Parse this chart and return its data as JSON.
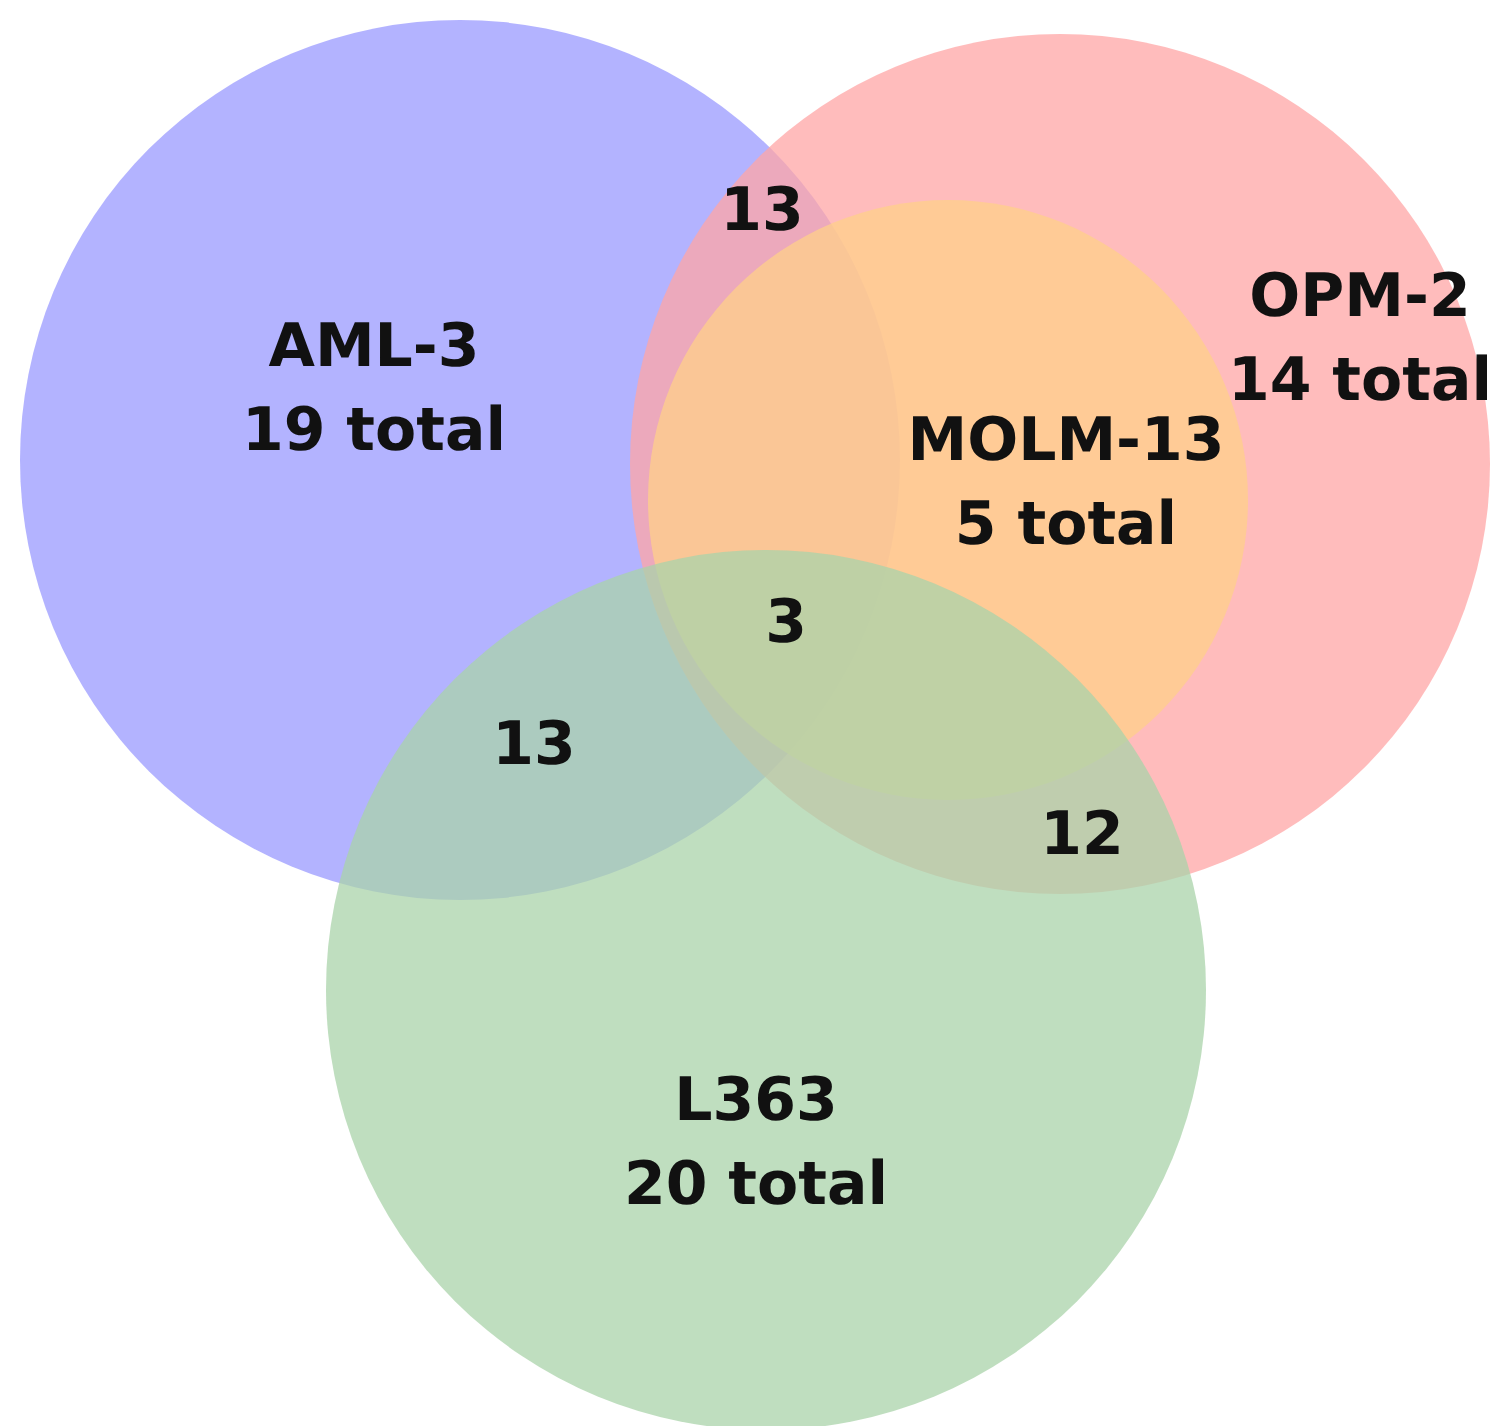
{
  "chart_data": {
    "type": "other",
    "categories": [
      "AML-3",
      "OPM-2",
      "MOLM-13",
      "L363"
    ],
    "values": [
      19,
      14,
      5,
      20
    ],
    "value_labels": [
      "19 total",
      "14 total",
      "5 total",
      "20 total"
    ],
    "colors": [
      "#9a9aff",
      "#ffa6a6",
      "#ffd08a",
      "#a9d3a9"
    ],
    "annotations": [
      "13",
      "3",
      "13",
      "12"
    ]
  }
}
